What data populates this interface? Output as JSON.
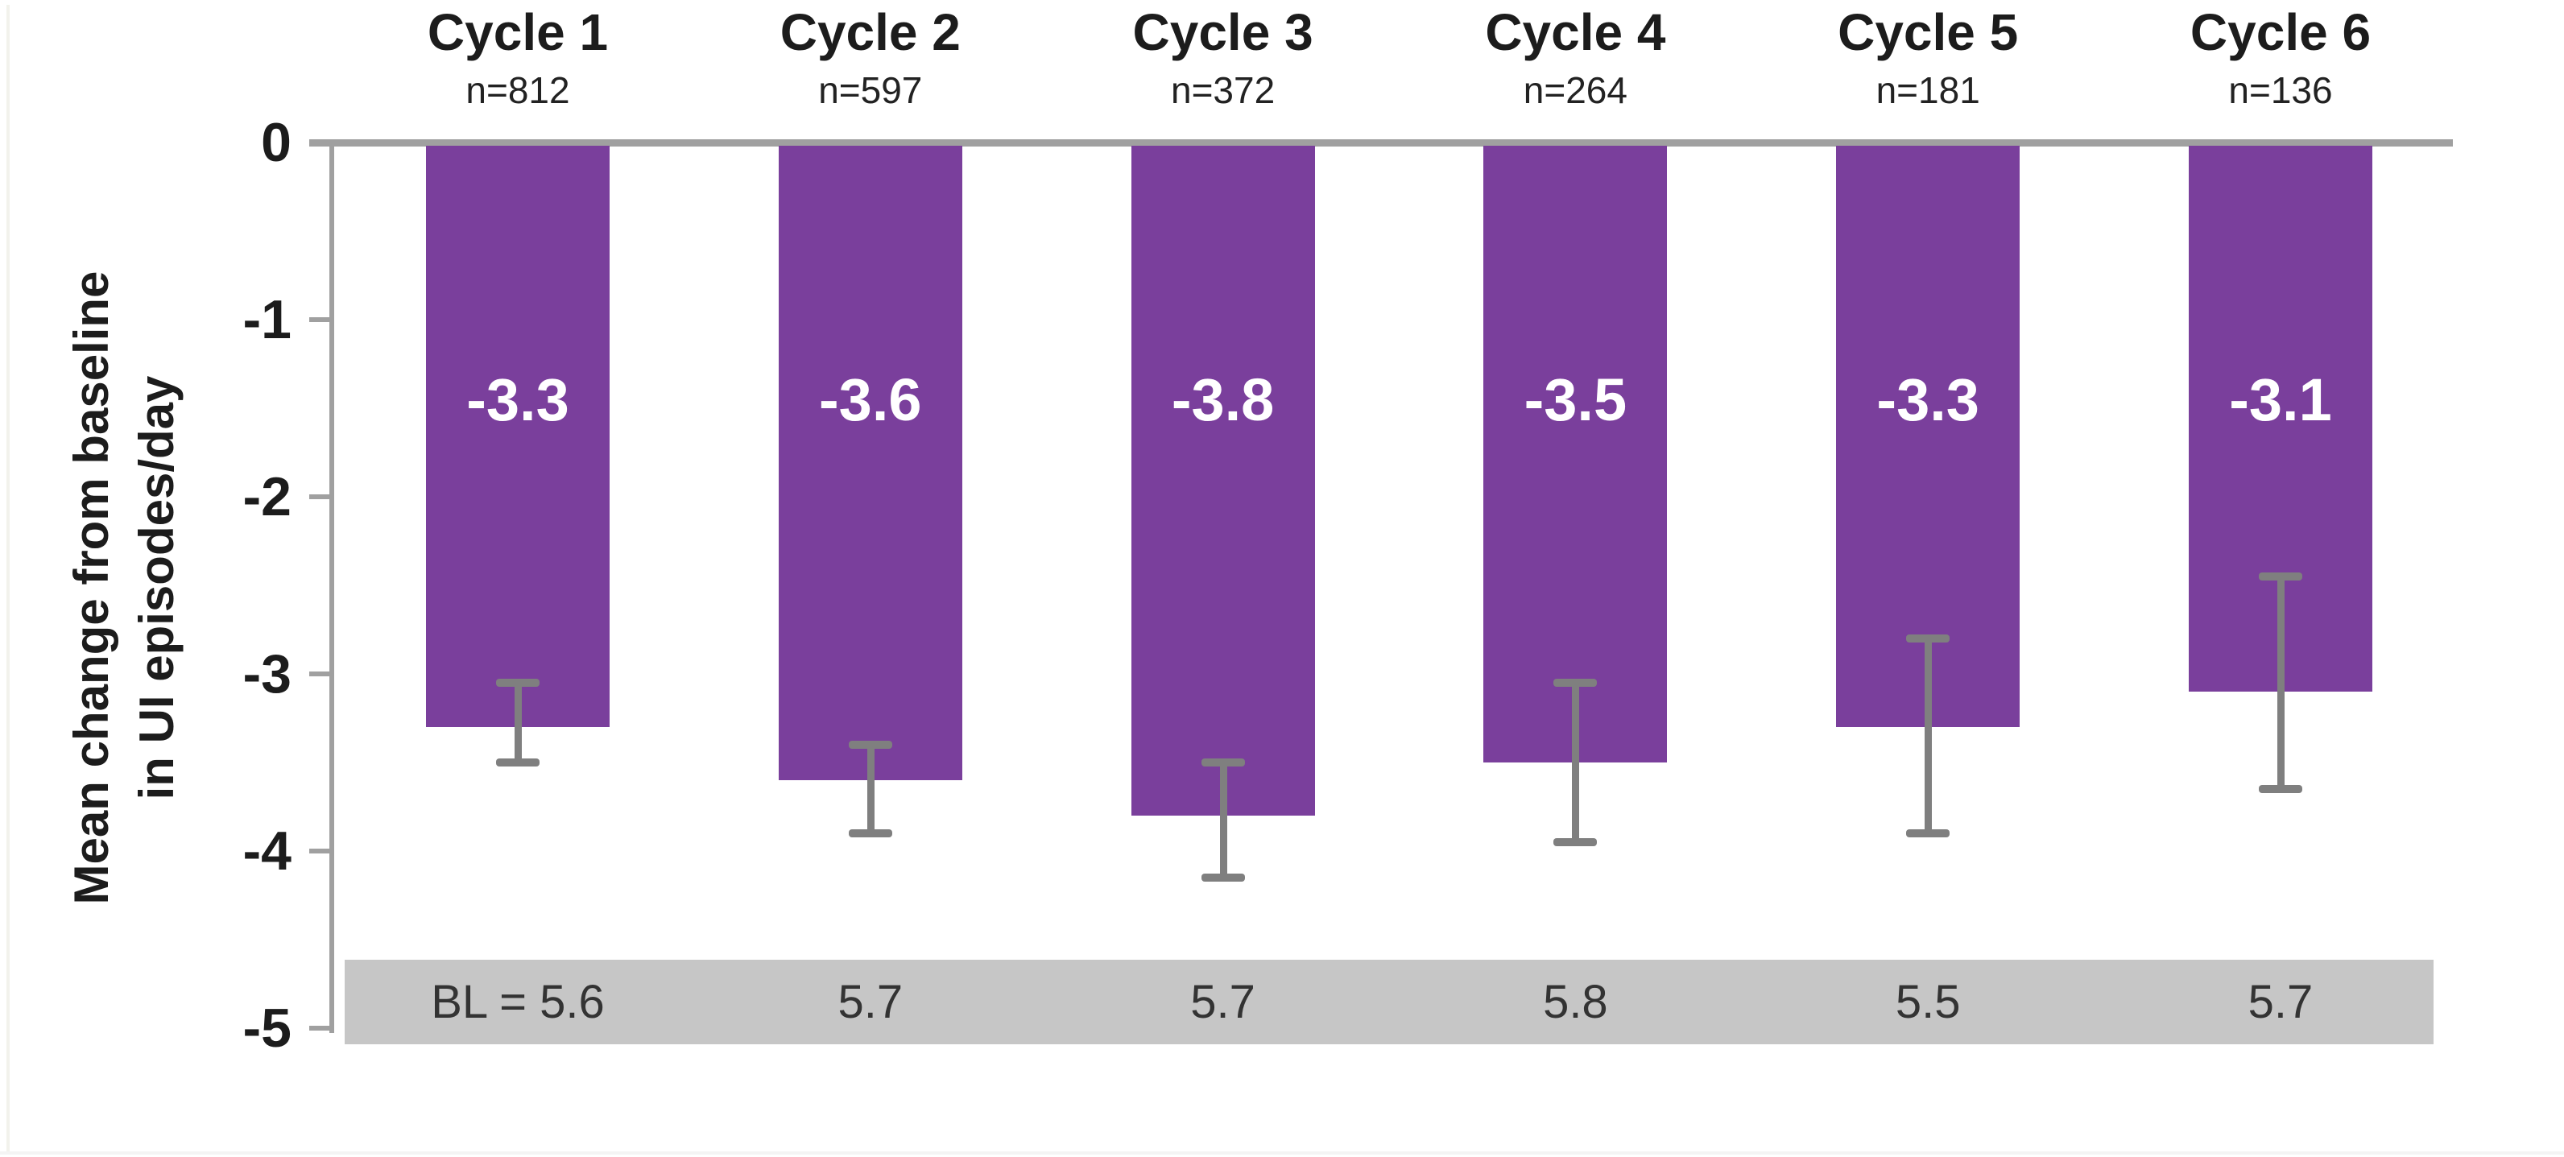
{
  "figure": {
    "colors": {
      "bar": "#7a3f9c",
      "error_bar": "#7f7f7f",
      "axis": "#a0a0a0",
      "baseline_band": "#c6c6c6",
      "value_label_text": "#ffffff",
      "background": "#ffffff"
    }
  },
  "chart_data": {
    "type": "bar",
    "title": "",
    "categories": [
      "Cycle 1",
      "Cycle 2",
      "Cycle 3",
      "Cycle 4",
      "Cycle 5",
      "Cycle 6"
    ],
    "n_labels": [
      "n=812",
      "n=597",
      "n=372",
      "n=264",
      "n=181",
      "n=136"
    ],
    "values": [
      -3.3,
      -3.6,
      -3.8,
      -3.5,
      -3.3,
      -3.1
    ],
    "value_labels": [
      "-3.3",
      "-3.6",
      "-3.8",
      "-3.5",
      "-3.3",
      "-3.1"
    ],
    "error_bars": [
      {
        "top": -3.05,
        "bottom": -3.5
      },
      {
        "top": -3.4,
        "bottom": -3.9
      },
      {
        "top": -3.5,
        "bottom": -4.15
      },
      {
        "top": -3.05,
        "bottom": -3.95
      },
      {
        "top": -2.8,
        "bottom": -3.9
      },
      {
        "top": -2.45,
        "bottom": -3.65
      }
    ],
    "baseline_row": [
      "BL = 5.6",
      "5.7",
      "5.7",
      "5.8",
      "5.5",
      "5.7"
    ],
    "ylabel_lines": [
      "Mean change from baseline",
      "in UI episodes/day"
    ],
    "yticks": [
      "0",
      "-1",
      "-2",
      "-3",
      "-4",
      "-5"
    ],
    "ytick_values": [
      0,
      -1,
      -2,
      -3,
      -4,
      -5
    ],
    "ylim": [
      0,
      -5
    ],
    "grid": false,
    "legend": null
  }
}
